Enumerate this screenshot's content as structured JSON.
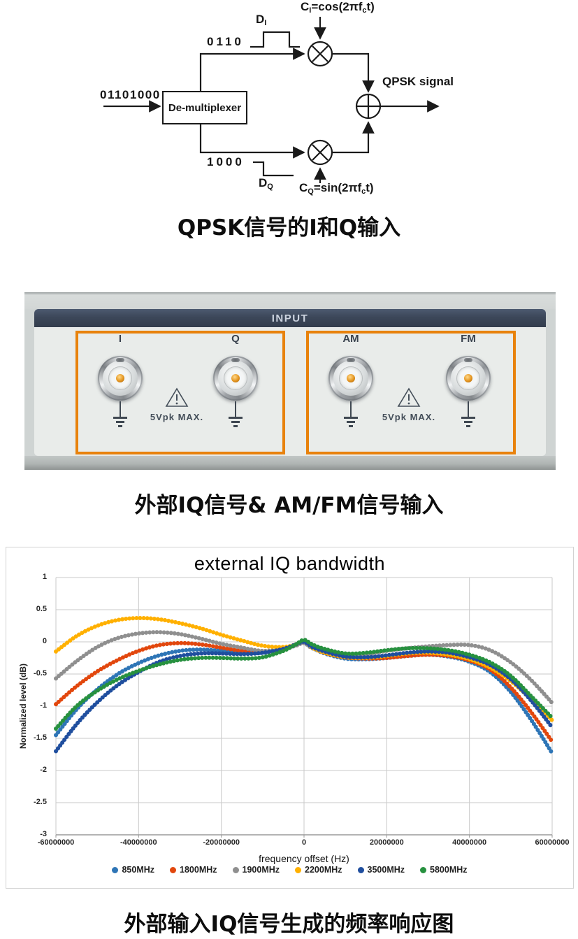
{
  "diagram": {
    "input_bits": "01101000",
    "demux_label": "De-multiplexer",
    "i_branch_bits": "0110",
    "q_branch_bits": "1000",
    "d_i": {
      "main": "D",
      "sub": "I"
    },
    "d_q": {
      "main": "D",
      "sub": "Q"
    },
    "carrier_i": {
      "sym": "C",
      "sym_sub": "I",
      "fn": "=cos(2π",
      "f": "f",
      "f_sub": "c",
      "tail": "t)"
    },
    "carrier_q": {
      "sym": "C",
      "sym_sub": "Q",
      "fn": "=sin(2π",
      "f": "f",
      "f_sub": "c",
      "tail": "t)"
    },
    "output_label": "QPSK signal",
    "caption": "QPSK信号的I和Q输入"
  },
  "panel": {
    "header": "INPUT",
    "groups": [
      {
        "connectors": [
          "I",
          "Q"
        ],
        "warning_text": "5Vpk MAX."
      },
      {
        "connectors": [
          "AM",
          "FM"
        ],
        "warning_text": "5Vpk MAX."
      }
    ],
    "highlight_color": "#e8820c",
    "header_color": "#3c4759",
    "caption": "外部IQ信号& AM/FM信号输入"
  },
  "chart_data": {
    "type": "scatter",
    "title": "external IQ bandwidth",
    "xlabel": "frequency offset (Hz)",
    "ylabel": "Normalized level (dB)",
    "xlim": [
      -60000000,
      60000000
    ],
    "ylim": [
      -3,
      1
    ],
    "grid": true,
    "legend_position": "bottom",
    "x_ticks": [
      -60000000,
      -40000000,
      -20000000,
      0,
      20000000,
      40000000,
      60000000
    ],
    "y_ticks": [
      1,
      0.5,
      0,
      -0.5,
      -1,
      -1.5,
      -2,
      -2.5,
      -3
    ],
    "x": [
      -60000000,
      -55000000,
      -50000000,
      -45000000,
      -40000000,
      -35000000,
      -30000000,
      -25000000,
      -20000000,
      -15000000,
      -10000000,
      -5000000,
      -2000000,
      0,
      2000000,
      5000000,
      10000000,
      15000000,
      20000000,
      25000000,
      30000000,
      35000000,
      40000000,
      45000000,
      50000000,
      55000000,
      60000000
    ],
    "series": [
      {
        "name": "850MHz",
        "color": "#2e75b6",
        "values": [
          -1.45,
          -1.05,
          -0.74,
          -0.5,
          -0.33,
          -0.21,
          -0.14,
          -0.12,
          -0.14,
          -0.17,
          -0.17,
          -0.11,
          -0.05,
          0.0,
          -0.09,
          -0.18,
          -0.26,
          -0.27,
          -0.25,
          -0.22,
          -0.2,
          -0.23,
          -0.31,
          -0.47,
          -0.78,
          -1.22,
          -1.73
        ]
      },
      {
        "name": "1800MHz",
        "color": "#e2470d",
        "values": [
          -0.97,
          -0.69,
          -0.46,
          -0.28,
          -0.14,
          -0.05,
          -0.02,
          -0.04,
          -0.09,
          -0.14,
          -0.16,
          -0.11,
          -0.05,
          -0.01,
          -0.09,
          -0.17,
          -0.24,
          -0.26,
          -0.25,
          -0.22,
          -0.2,
          -0.22,
          -0.29,
          -0.43,
          -0.71,
          -1.1,
          -1.55
        ]
      },
      {
        "name": "1900MHz",
        "color": "#8f8f8f",
        "values": [
          -0.57,
          -0.3,
          -0.08,
          0.06,
          0.13,
          0.15,
          0.12,
          0.05,
          -0.03,
          -0.09,
          -0.14,
          -0.11,
          -0.06,
          -0.02,
          -0.1,
          -0.16,
          -0.21,
          -0.19,
          -0.14,
          -0.1,
          -0.07,
          -0.05,
          -0.05,
          -0.13,
          -0.32,
          -0.6,
          -0.95
        ]
      },
      {
        "name": "2200MHz",
        "color": "#ffb000",
        "values": [
          -0.15,
          0.09,
          0.25,
          0.34,
          0.37,
          0.35,
          0.29,
          0.21,
          0.11,
          0.02,
          -0.06,
          -0.08,
          -0.04,
          0.01,
          -0.09,
          -0.17,
          -0.24,
          -0.25,
          -0.22,
          -0.18,
          -0.17,
          -0.2,
          -0.27,
          -0.4,
          -0.61,
          -0.9,
          -1.22
        ]
      },
      {
        "name": "3500MHz",
        "color": "#1f4e9e",
        "values": [
          -1.7,
          -1.28,
          -0.94,
          -0.67,
          -0.47,
          -0.31,
          -0.22,
          -0.18,
          -0.18,
          -0.19,
          -0.17,
          -0.11,
          -0.04,
          0.0,
          -0.08,
          -0.15,
          -0.23,
          -0.24,
          -0.21,
          -0.17,
          -0.15,
          -0.17,
          -0.24,
          -0.36,
          -0.58,
          -0.92,
          -1.33
        ]
      },
      {
        "name": "5800MHz",
        "color": "#27913f",
        "values": [
          -1.35,
          -1.0,
          -0.76,
          -0.58,
          -0.45,
          -0.35,
          -0.28,
          -0.25,
          -0.25,
          -0.26,
          -0.24,
          -0.14,
          -0.04,
          0.03,
          -0.04,
          -0.11,
          -0.18,
          -0.17,
          -0.13,
          -0.1,
          -0.1,
          -0.13,
          -0.2,
          -0.32,
          -0.53,
          -0.85,
          -1.18
        ]
      }
    ]
  },
  "chart_caption": "外部输入IQ信号生成的频率响应图"
}
